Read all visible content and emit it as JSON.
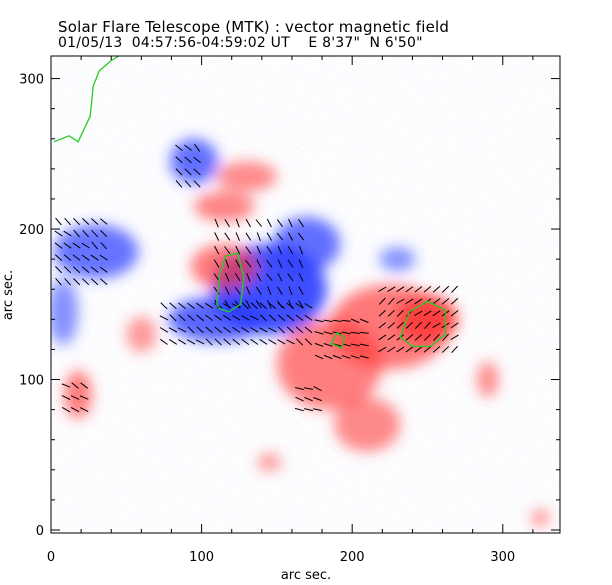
{
  "header": {
    "title": "Solar Flare Telescope (MTK) : vector magnetic field",
    "subtitle": "01/05/13  04:57:56-04:59:02 UT    E 8'37\"  N 6'50\""
  },
  "colors": {
    "positive": "#ff3a3a",
    "negative": "#2a3cff",
    "contour_green": "#22cc22",
    "vector": "#000000"
  },
  "chart_data": {
    "type": "heatmap",
    "title": "Solar Flare Telescope (MTK) : vector magnetic field",
    "xlabel": "arc sec.",
    "ylabel": "arc sec.",
    "xlim": [
      0,
      338
    ],
    "ylim": [
      -2,
      315
    ],
    "xticks": [
      0,
      100,
      200,
      300
    ],
    "yticks": [
      0,
      100,
      200,
      300
    ],
    "polarity_regions": [
      {
        "polarity": "negative",
        "cx": 145,
        "cy": 160,
        "rx": 38,
        "ry": 30,
        "strength": 1.0
      },
      {
        "polarity": "negative",
        "cx": 110,
        "cy": 140,
        "rx": 32,
        "ry": 15,
        "strength": 0.8
      },
      {
        "polarity": "negative",
        "cx": 170,
        "cy": 190,
        "rx": 22,
        "ry": 18,
        "strength": 0.7
      },
      {
        "polarity": "negative",
        "cx": 95,
        "cy": 245,
        "rx": 16,
        "ry": 15,
        "strength": 0.7
      },
      {
        "polarity": "negative",
        "cx": 30,
        "cy": 185,
        "rx": 28,
        "ry": 18,
        "strength": 0.65
      },
      {
        "polarity": "negative",
        "cx": 8,
        "cy": 145,
        "rx": 10,
        "ry": 22,
        "strength": 0.4
      },
      {
        "polarity": "negative",
        "cx": 230,
        "cy": 180,
        "rx": 12,
        "ry": 8,
        "strength": 0.4
      },
      {
        "polarity": "positive",
        "cx": 250,
        "cy": 140,
        "rx": 20,
        "ry": 16,
        "strength": 1.0
      },
      {
        "polarity": "positive",
        "cx": 225,
        "cy": 135,
        "rx": 40,
        "ry": 28,
        "strength": 0.6
      },
      {
        "polarity": "positive",
        "cx": 185,
        "cy": 110,
        "rx": 35,
        "ry": 30,
        "strength": 0.55
      },
      {
        "polarity": "positive",
        "cx": 210,
        "cy": 70,
        "rx": 22,
        "ry": 18,
        "strength": 0.45
      },
      {
        "polarity": "positive",
        "cx": 115,
        "cy": 175,
        "rx": 22,
        "ry": 15,
        "strength": 0.6
      },
      {
        "polarity": "positive",
        "cx": 115,
        "cy": 215,
        "rx": 20,
        "ry": 10,
        "strength": 0.5
      },
      {
        "polarity": "positive",
        "cx": 130,
        "cy": 235,
        "rx": 20,
        "ry": 10,
        "strength": 0.45
      },
      {
        "polarity": "positive",
        "cx": 18,
        "cy": 90,
        "rx": 9,
        "ry": 16,
        "strength": 0.6
      },
      {
        "polarity": "positive",
        "cx": 290,
        "cy": 100,
        "rx": 7,
        "ry": 12,
        "strength": 0.45
      },
      {
        "polarity": "positive",
        "cx": 60,
        "cy": 130,
        "rx": 10,
        "ry": 12,
        "strength": 0.3
      },
      {
        "polarity": "positive",
        "cx": 145,
        "cy": 45,
        "rx": 8,
        "ry": 6,
        "strength": 0.3
      },
      {
        "polarity": "positive",
        "cx": 325,
        "cy": 8,
        "rx": 6,
        "ry": 5,
        "strength": 0.5
      }
    ],
    "contours": [
      {
        "color": "green",
        "points": [
          [
            110,
            150
          ],
          [
            112,
            170
          ],
          [
            116,
            182
          ],
          [
            124,
            184
          ],
          [
            128,
            168
          ],
          [
            126,
            150
          ],
          [
            118,
            145
          ],
          [
            112,
            147
          ]
        ]
      },
      {
        "color": "green",
        "points": [
          [
            232,
            128
          ],
          [
            238,
            145
          ],
          [
            250,
            152
          ],
          [
            262,
            146
          ],
          [
            262,
            130
          ],
          [
            252,
            122
          ],
          [
            240,
            122
          ]
        ]
      },
      {
        "color": "green",
        "points": [
          [
            186,
            124
          ],
          [
            190,
            131
          ],
          [
            195,
            128
          ],
          [
            193,
            121
          ]
        ]
      },
      {
        "color": "green",
        "points": [
          [
            2,
            258
          ],
          [
            12,
            262
          ],
          [
            18,
            258
          ],
          [
            26,
            275
          ],
          [
            28,
            295
          ],
          [
            32,
            305
          ],
          [
            40,
            312
          ],
          [
            45,
            315
          ]
        ],
        "open": true
      }
    ],
    "vector_field": [
      {
        "x0": 5,
        "x1": 35,
        "y0": 165,
        "y1": 205,
        "dx": 6,
        "dy": 8,
        "angle": -40
      },
      {
        "x0": 85,
        "x1": 97,
        "y0": 230,
        "y1": 255,
        "dx": 6,
        "dy": 8,
        "angle": -45
      },
      {
        "x0": 75,
        "x1": 175,
        "y0": 125,
        "y1": 150,
        "dx": 6,
        "dy": 8,
        "angle": -35
      },
      {
        "x0": 110,
        "x1": 170,
        "y0": 150,
        "y1": 205,
        "dx": 7,
        "dy": 9,
        "angle": -60
      },
      {
        "x0": 178,
        "x1": 210,
        "y0": 115,
        "y1": 145,
        "dx": 6,
        "dy": 8,
        "angle": -15
      },
      {
        "x0": 220,
        "x1": 270,
        "y0": 120,
        "y1": 160,
        "dx": 6,
        "dy": 8,
        "angle": 40
      },
      {
        "x0": 10,
        "x1": 25,
        "y0": 80,
        "y1": 100,
        "dx": 6,
        "dy": 8,
        "angle": -30
      },
      {
        "x0": 165,
        "x1": 180,
        "y0": 80,
        "y1": 100,
        "dx": 6,
        "dy": 7,
        "angle": -20
      }
    ]
  }
}
